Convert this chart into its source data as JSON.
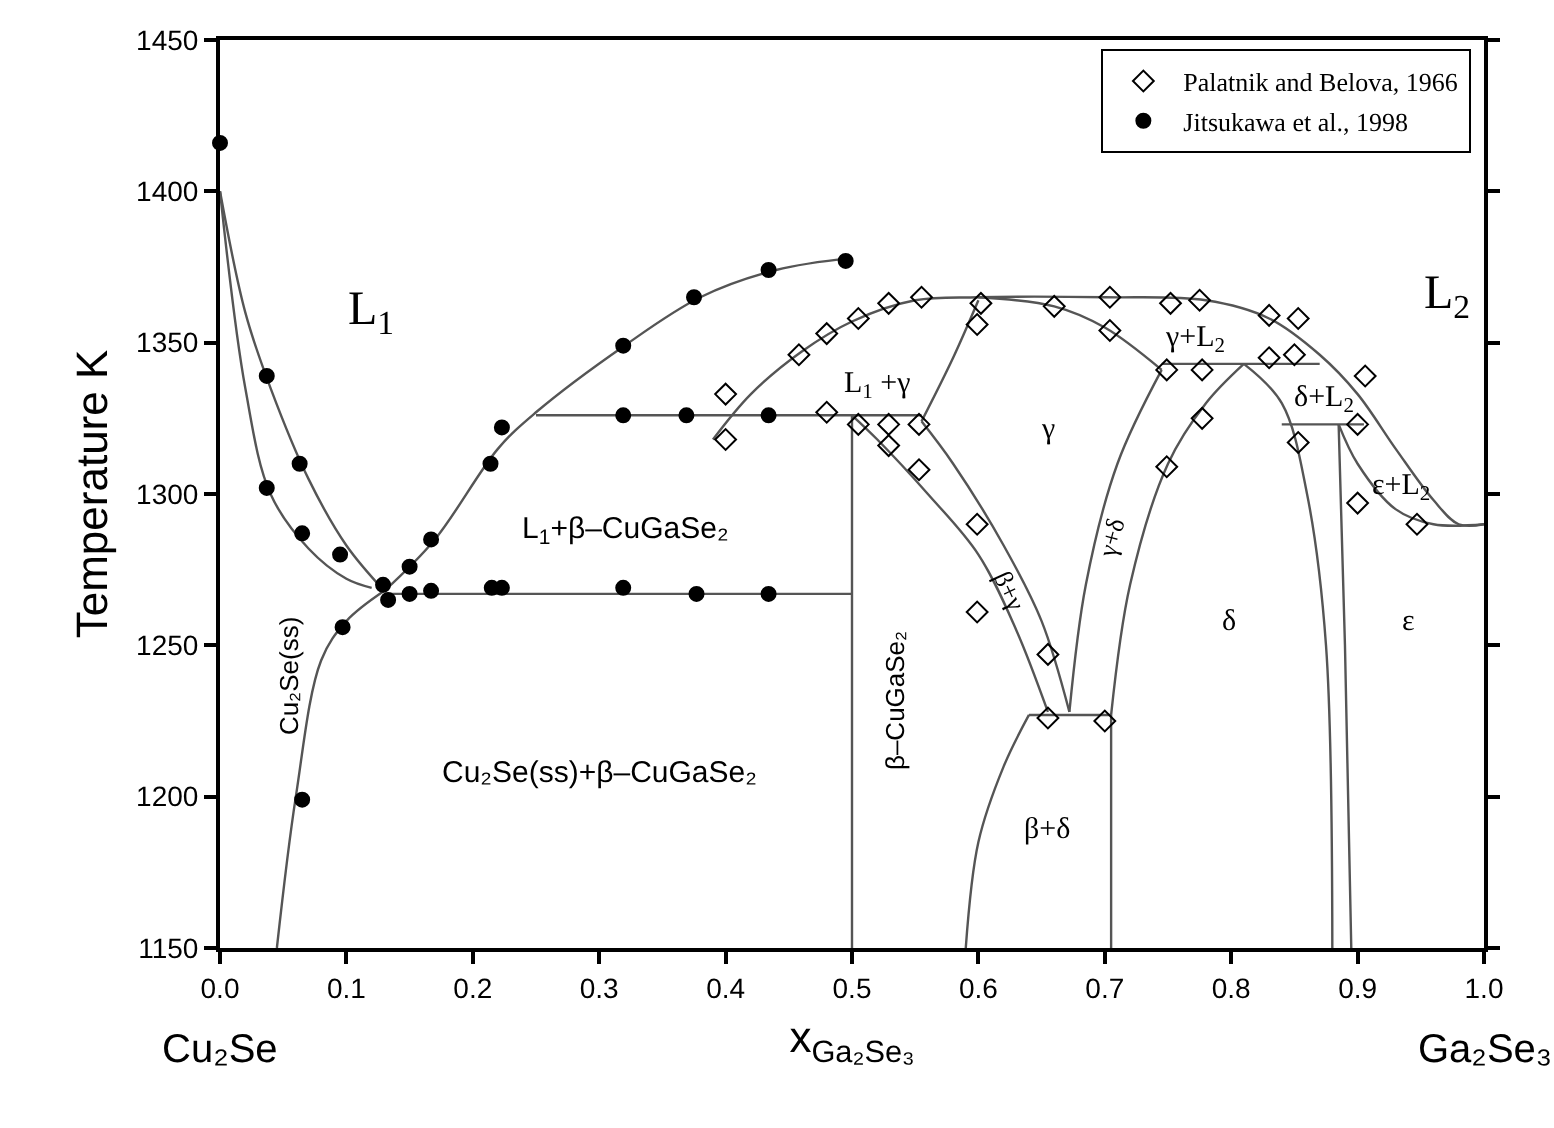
{
  "chart_data": {
    "type": "scatter",
    "xlabel": "x$_{Ga₂Se₃}$",
    "ylabel": "Temperature K",
    "xlim": [
      0,
      1
    ],
    "ylim": [
      1150,
      1450
    ],
    "xticks": [
      {
        "value": 0,
        "label": "0.0"
      },
      0.1,
      0.2,
      0.3,
      0.4,
      0.5,
      0.6,
      0.7,
      0.8,
      0.9,
      {
        "value": 1,
        "label": "1.0"
      }
    ],
    "yticks": [
      1150,
      1200,
      1250,
      1300,
      1350,
      1400,
      1450
    ],
    "legend": "top right",
    "series": [
      {
        "type": "line",
        "color": "#555555",
        "marker": "none",
        "x": [
          0,
          0.02,
          0.04,
          0.07,
          0.1,
          0.13
        ],
        "values": [
          1400,
          1360,
          1335,
          1305,
          1283,
          1268
        ]
      },
      {
        "type": "line",
        "color": "#555555",
        "marker": "none",
        "x": [
          0,
          0.02,
          0.04,
          0.07,
          0.1,
          0.12
        ],
        "values": [
          1400,
          1335,
          1300,
          1282,
          1272,
          1269
        ]
      },
      {
        "type": "line",
        "color": "#555555",
        "marker": "none",
        "x": [
          0.045,
          0.06,
          0.08,
          0.1,
          0.13
        ],
        "values": [
          1150,
          1200,
          1245,
          1258,
          1268
        ]
      },
      {
        "type": "line",
        "color": "#555555",
        "marker": "none",
        "x": [
          0.13,
          0.17,
          0.22,
          0.25,
          0.32,
          0.38,
          0.44,
          0.5
        ],
        "values": [
          1268,
          1285,
          1315,
          1327,
          1349,
          1365,
          1374,
          1378
        ]
      },
      {
        "type": "line",
        "color": "#555555",
        "marker": "none",
        "x": [
          0.13,
          0.5
        ],
        "values": [
          1267,
          1267
        ]
      },
      {
        "type": "line",
        "color": "#555555",
        "marker": "none",
        "x": [
          0.25,
          0.555
        ],
        "values": [
          1326,
          1326
        ]
      },
      {
        "type": "line",
        "color": "#555555",
        "marker": "none",
        "x": [
          0.5,
          0.5
        ],
        "values": [
          1150,
          1326
        ]
      },
      {
        "type": "line",
        "color": "#555555",
        "marker": "none",
        "x": [
          0.39,
          0.42,
          0.46,
          0.5,
          0.55,
          0.6,
          0.7,
          0.78,
          0.83,
          0.87,
          0.9,
          0.93,
          0.96,
          0.98,
          1.0
        ],
        "values": [
          1318,
          1333,
          1347,
          1357,
          1364,
          1365,
          1365,
          1364,
          1358,
          1346,
          1333,
          1315,
          1298,
          1290,
          1290
        ]
      },
      {
        "type": "line",
        "color": "#555555",
        "marker": "none",
        "x": [
          0.555,
          0.58,
          0.6
        ],
        "values": [
          1324,
          1345,
          1364
        ]
      },
      {
        "type": "line",
        "color": "#555555",
        "marker": "none",
        "x": [
          0.5,
          0.52,
          0.56,
          0.6,
          0.63,
          0.655
        ],
        "values": [
          1326,
          1318,
          1300,
          1280,
          1255,
          1228
        ]
      },
      {
        "type": "line",
        "color": "#555555",
        "marker": "none",
        "x": [
          0.555,
          0.58,
          0.62,
          0.65,
          0.672
        ],
        "values": [
          1324,
          1310,
          1283,
          1258,
          1228
        ]
      },
      {
        "type": "line",
        "color": "#555555",
        "marker": "none",
        "x": [
          0.64,
          0.705
        ],
        "values": [
          1227,
          1227
        ]
      },
      {
        "type": "line",
        "color": "#555555",
        "marker": "none",
        "x": [
          0.64,
          0.62,
          0.6,
          0.59
        ],
        "values": [
          1227,
          1210,
          1185,
          1150
        ]
      },
      {
        "type": "line",
        "color": "#555555",
        "marker": "none",
        "x": [
          0.705,
          0.705
        ],
        "values": [
          1150,
          1227
        ]
      },
      {
        "type": "line",
        "color": "#555555",
        "marker": "none",
        "x": [
          0.6,
          0.66,
          0.7,
          0.745
        ],
        "values": [
          1365,
          1362,
          1355,
          1341
        ]
      },
      {
        "type": "line",
        "color": "#555555",
        "marker": "none",
        "x": [
          0.672,
          0.685,
          0.71,
          0.745
        ],
        "values": [
          1228,
          1270,
          1310,
          1341
        ]
      },
      {
        "type": "line",
        "color": "#555555",
        "marker": "none",
        "x": [
          0.705,
          0.72,
          0.75,
          0.78,
          0.81
        ],
        "values": [
          1227,
          1270,
          1310,
          1330,
          1343
        ]
      },
      {
        "type": "line",
        "color": "#555555",
        "marker": "none",
        "x": [
          0.745,
          0.87
        ],
        "values": [
          1343,
          1343
        ]
      },
      {
        "type": "line",
        "color": "#555555",
        "marker": "none",
        "x": [
          0.81,
          0.84,
          0.86,
          0.875,
          0.88
        ],
        "values": [
          1343,
          1330,
          1300,
          1250,
          1150
        ]
      },
      {
        "type": "line",
        "color": "#555555",
        "marker": "none",
        "x": [
          0.84,
          0.905
        ],
        "values": [
          1323,
          1323
        ]
      },
      {
        "type": "line",
        "color": "#555555",
        "marker": "none",
        "x": [
          0.885,
          0.89,
          0.895
        ],
        "values": [
          1323,
          1250,
          1150
        ]
      },
      {
        "type": "line",
        "color": "#555555",
        "marker": "none",
        "x": [
          0.885,
          0.9,
          0.93,
          0.96,
          1.0
        ],
        "values": [
          1323,
          1310,
          1295,
          1290,
          1290
        ]
      },
      {
        "name": "Palatnik and Belova, 1966",
        "color": "#000000",
        "marker": "diamond",
        "x": [
          0.4,
          0.4,
          0.458,
          0.48,
          0.505,
          0.529,
          0.555,
          0.602,
          0.599,
          0.66,
          0.704,
          0.752,
          0.775,
          0.83,
          0.853,
          0.704,
          0.749,
          0.777,
          0.83,
          0.85,
          0.906,
          0.9,
          0.853,
          0.777,
          0.749,
          0.48,
          0.505,
          0.529,
          0.553,
          0.529,
          0.553,
          0.599,
          0.599,
          0.9,
          0.947,
          0.655,
          0.655,
          0.7
        ],
        "values": [
          1333,
          1318,
          1346,
          1353,
          1358,
          1363,
          1365,
          1363,
          1356,
          1362,
          1365,
          1363,
          1364,
          1359,
          1358,
          1354,
          1341,
          1341,
          1345,
          1346,
          1339,
          1323,
          1317,
          1325,
          1309,
          1327,
          1323,
          1323,
          1323,
          1316,
          1308,
          1290,
          1261,
          1297,
          1290,
          1247,
          1226,
          1225
        ]
      },
      {
        "name": "Jitsukawa et al., 1998",
        "color": "#000000",
        "marker": "circle",
        "x": [
          0.0,
          0.037,
          0.063,
          0.037,
          0.065,
          0.095,
          0.129,
          0.133,
          0.15,
          0.167,
          0.15,
          0.167,
          0.214,
          0.223,
          0.215,
          0.223,
          0.319,
          0.377,
          0.434,
          0.319,
          0.369,
          0.434,
          0.319,
          0.375,
          0.434,
          0.495,
          0.097,
          0.065
        ],
        "values": [
          1416,
          1339,
          1310,
          1302,
          1287,
          1280,
          1270,
          1265,
          1276,
          1285,
          1267,
          1268,
          1310,
          1322,
          1269,
          1269,
          1269,
          1267,
          1267,
          1326,
          1326,
          1326,
          1349,
          1365,
          1374,
          1377,
          1256,
          1199
        ]
      }
    ],
    "annotations": [
      "Cu₂Se",
      "Ga₂Se₃",
      "L$_{1}$",
      "L$_{2}$",
      "L$_{1}$+β–CuGaSe₂",
      "Cu₂Se(ss)+β–CuGaSe₂",
      "Cu₂Se(ss)",
      "β–CuGaSe₂",
      "L$_{1}$ +γ",
      "γ",
      "γ+L$_{2}$",
      "δ+L$_{2}$",
      "ε+L$_{2}$",
      "β+γ",
      "γ+δ",
      "δ",
      "ε",
      "β+δ"
    ]
  }
}
